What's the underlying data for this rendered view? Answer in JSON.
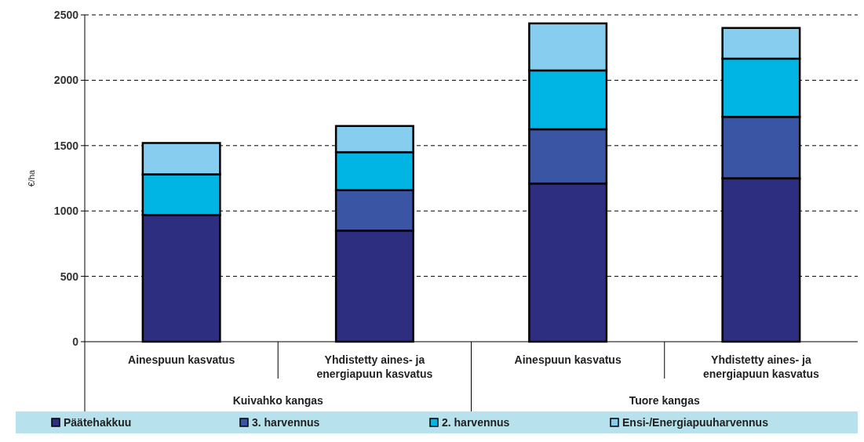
{
  "chart_data": {
    "type": "bar",
    "stacked": true,
    "ylabel": "€/ha",
    "categories": [
      "Ainespuun kasvatus",
      "Yhdistetty aines- ja energiapuun kasvatus",
      "Ainespuun kasvatus",
      "Yhdistetty aines- ja energiapuun kasvatus"
    ],
    "annotations": [
      "Kuivahko kangas",
      "Tuore kangas"
    ],
    "series": [
      {
        "name": "Päätehakkuu",
        "color": "#2e2e80",
        "values": [
          970,
          850,
          1210,
          1250
        ]
      },
      {
        "name": "3. harvennus",
        "color": "#3a55a3",
        "values": [
          0,
          310,
          415,
          470
        ]
      },
      {
        "name": "2. harvennus",
        "color": "#00b4e4",
        "values": [
          310,
          290,
          450,
          445
        ]
      },
      {
        "name": "Ensi-/Energiapuuharvennus",
        "color": "#87cdf0",
        "values": [
          240,
          200,
          360,
          235
        ]
      }
    ],
    "ylim": [
      0,
      2500
    ],
    "yticks": [
      0,
      500,
      1000,
      1500,
      2000,
      2500
    ],
    "grid": "y",
    "legend": "bottom"
  }
}
